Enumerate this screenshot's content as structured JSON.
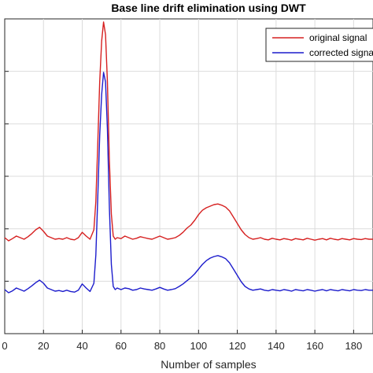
{
  "chart_data": {
    "type": "line",
    "title": "Base line drift elimination using DWT",
    "xlabel": "Number of samples",
    "ylabel": "",
    "xlim": [
      0,
      190
    ],
    "ylim": [
      0,
      1.0
    ],
    "x_ticks": [
      0,
      20,
      40,
      60,
      80,
      100,
      120,
      140,
      160,
      180
    ],
    "x_tick_labels": [
      "0",
      "20",
      "40",
      "60",
      "80",
      "100",
      "120",
      "140",
      "160",
      "180"
    ],
    "grid": true,
    "legend_position": "top-right",
    "series": [
      {
        "name": "original signal",
        "color": "#d62020",
        "x": [
          0,
          2,
          4,
          6,
          8,
          10,
          12,
          14,
          16,
          18,
          20,
          22,
          24,
          26,
          28,
          30,
          32,
          34,
          36,
          38,
          40,
          42,
          44,
          46,
          47,
          48,
          49,
          50,
          51,
          52,
          53,
          54,
          55,
          56,
          57,
          58,
          60,
          62,
          64,
          66,
          68,
          70,
          72,
          74,
          76,
          78,
          80,
          82,
          84,
          86,
          88,
          90,
          92,
          94,
          96,
          98,
          100,
          102,
          104,
          106,
          108,
          110,
          112,
          114,
          116,
          118,
          120,
          122,
          124,
          126,
          128,
          130,
          132,
          134,
          136,
          138,
          140,
          142,
          144,
          146,
          148,
          150,
          152,
          154,
          156,
          158,
          160,
          162,
          164,
          166,
          168,
          170,
          172,
          174,
          176,
          178,
          180,
          182,
          184,
          186,
          188,
          190
        ],
        "y": [
          0.305,
          0.295,
          0.302,
          0.31,
          0.305,
          0.3,
          0.308,
          0.318,
          0.33,
          0.338,
          0.325,
          0.31,
          0.305,
          0.3,
          0.302,
          0.3,
          0.305,
          0.3,
          0.298,
          0.305,
          0.322,
          0.31,
          0.3,
          0.33,
          0.42,
          0.6,
          0.8,
          0.93,
          0.99,
          0.95,
          0.8,
          0.55,
          0.38,
          0.31,
          0.3,
          0.305,
          0.302,
          0.31,
          0.305,
          0.3,
          0.303,
          0.308,
          0.305,
          0.302,
          0.3,
          0.305,
          0.31,
          0.305,
          0.3,
          0.302,
          0.305,
          0.312,
          0.322,
          0.335,
          0.345,
          0.36,
          0.378,
          0.392,
          0.4,
          0.405,
          0.41,
          0.412,
          0.408,
          0.402,
          0.39,
          0.37,
          0.35,
          0.33,
          0.315,
          0.305,
          0.3,
          0.302,
          0.305,
          0.3,
          0.298,
          0.303,
          0.3,
          0.298,
          0.302,
          0.3,
          0.297,
          0.302,
          0.3,
          0.298,
          0.303,
          0.3,
          0.297,
          0.3,
          0.302,
          0.298,
          0.303,
          0.3,
          0.298,
          0.302,
          0.3,
          0.298,
          0.302,
          0.3,
          0.299,
          0.302,
          0.3,
          0.3
        ]
      },
      {
        "name": "corrected signal",
        "color": "#1c1ccc",
        "x": [
          0,
          2,
          4,
          6,
          8,
          10,
          12,
          14,
          16,
          18,
          20,
          22,
          24,
          26,
          28,
          30,
          32,
          34,
          36,
          38,
          40,
          42,
          44,
          46,
          47,
          48,
          49,
          50,
          51,
          52,
          53,
          54,
          55,
          56,
          57,
          58,
          60,
          62,
          64,
          66,
          68,
          70,
          72,
          74,
          76,
          78,
          80,
          82,
          84,
          86,
          88,
          90,
          92,
          94,
          96,
          98,
          100,
          102,
          104,
          106,
          108,
          110,
          112,
          114,
          116,
          118,
          120,
          122,
          124,
          126,
          128,
          130,
          132,
          134,
          136,
          138,
          140,
          142,
          144,
          146,
          148,
          150,
          152,
          154,
          156,
          158,
          160,
          162,
          164,
          166,
          168,
          170,
          172,
          174,
          176,
          178,
          180,
          182,
          184,
          186,
          188,
          190
        ],
        "y": [
          0.14,
          0.13,
          0.136,
          0.145,
          0.14,
          0.135,
          0.143,
          0.152,
          0.162,
          0.17,
          0.16,
          0.145,
          0.14,
          0.135,
          0.137,
          0.134,
          0.138,
          0.134,
          0.132,
          0.138,
          0.158,
          0.145,
          0.134,
          0.16,
          0.25,
          0.43,
          0.63,
          0.76,
          0.83,
          0.8,
          0.65,
          0.4,
          0.22,
          0.15,
          0.14,
          0.145,
          0.14,
          0.145,
          0.143,
          0.138,
          0.14,
          0.145,
          0.142,
          0.14,
          0.138,
          0.142,
          0.147,
          0.142,
          0.138,
          0.14,
          0.143,
          0.15,
          0.158,
          0.168,
          0.178,
          0.19,
          0.205,
          0.22,
          0.232,
          0.24,
          0.245,
          0.248,
          0.244,
          0.238,
          0.225,
          0.205,
          0.185,
          0.165,
          0.15,
          0.142,
          0.138,
          0.14,
          0.142,
          0.138,
          0.136,
          0.14,
          0.138,
          0.136,
          0.14,
          0.138,
          0.135,
          0.14,
          0.138,
          0.136,
          0.14,
          0.138,
          0.135,
          0.138,
          0.14,
          0.136,
          0.14,
          0.138,
          0.136,
          0.14,
          0.138,
          0.136,
          0.14,
          0.138,
          0.137,
          0.14,
          0.138,
          0.138
        ]
      }
    ]
  }
}
